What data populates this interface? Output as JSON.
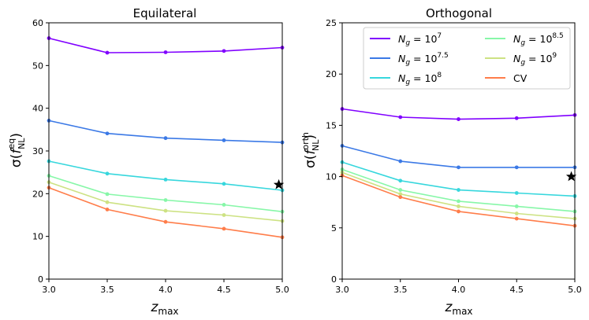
{
  "chart_data": [
    {
      "type": "line",
      "title": "Equilateral",
      "xlabel": "z",
      "xlabel_sub": "max",
      "ylabel_prefix": "σ(",
      "ylabel_main": "f",
      "ylabel_sup": "eq",
      "ylabel_sub": "NL",
      "ylabel_suffix": ")",
      "xlim": [
        3.0,
        5.0
      ],
      "ylim": [
        0,
        60
      ],
      "xticks": [
        3.0,
        3.5,
        4.0,
        4.5,
        5.0
      ],
      "xtick_labels": [
        "3.0",
        "3.5",
        "4.0",
        "4.5",
        "5.0"
      ],
      "yticks": [
        0,
        10,
        20,
        30,
        40,
        50,
        60
      ],
      "ytick_labels": [
        "0",
        "10",
        "20",
        "30",
        "40",
        "50",
        "60"
      ],
      "x": [
        3.0,
        3.5,
        4.0,
        4.5,
        5.0
      ],
      "series": [
        {
          "name": "N_g = 10^7",
          "color": "#8000ff",
          "values": [
            56.4,
            53.0,
            53.1,
            53.4,
            54.2
          ]
        },
        {
          "name": "N_g = 10^7.5",
          "color": "#3b79e6",
          "values": [
            37.1,
            34.1,
            33.0,
            32.5,
            32.0
          ]
        },
        {
          "name": "N_g = 10^8",
          "color": "#37d7dd",
          "values": [
            27.6,
            24.7,
            23.3,
            22.3,
            20.8
          ]
        },
        {
          "name": "N_g = 10^8.5",
          "color": "#87f7a8",
          "values": [
            24.2,
            19.9,
            18.5,
            17.4,
            15.8
          ]
        },
        {
          "name": "N_g = 10^9",
          "color": "#cde283",
          "values": [
            22.7,
            18.0,
            16.0,
            15.0,
            13.6
          ]
        },
        {
          "name": "CV",
          "color": "#ff7d4a",
          "values": [
            21.4,
            16.3,
            13.4,
            11.8,
            9.8
          ]
        }
      ],
      "marker": {
        "symbol": "star",
        "x": 4.97,
        "y": 22.1
      }
    },
    {
      "type": "line",
      "title": "Orthogonal",
      "xlabel": "z",
      "xlabel_sub": "max",
      "ylabel_prefix": "σ(",
      "ylabel_main": "f",
      "ylabel_sup": "orth",
      "ylabel_sub": "NL",
      "ylabel_suffix": ")",
      "xlim": [
        3.0,
        5.0
      ],
      "ylim": [
        0,
        25
      ],
      "xticks": [
        3.0,
        3.5,
        4.0,
        4.5,
        5.0
      ],
      "xtick_labels": [
        "3.0",
        "3.5",
        "4.0",
        "4.5",
        "5.0"
      ],
      "yticks": [
        0,
        5,
        10,
        15,
        20,
        25
      ],
      "ytick_labels": [
        "0",
        "5",
        "10",
        "15",
        "20",
        "25"
      ],
      "x": [
        3.0,
        3.5,
        4.0,
        4.5,
        5.0
      ],
      "series": [
        {
          "name": "N_g = 10^7",
          "color": "#8000ff",
          "values": [
            16.6,
            15.8,
            15.6,
            15.7,
            16.0
          ]
        },
        {
          "name": "N_g = 10^7.5",
          "color": "#3b79e6",
          "values": [
            13.0,
            11.5,
            10.9,
            10.9,
            10.9
          ]
        },
        {
          "name": "N_g = 10^8",
          "color": "#37d7dd",
          "values": [
            11.4,
            9.6,
            8.7,
            8.4,
            8.1
          ]
        },
        {
          "name": "N_g = 10^8.5",
          "color": "#87f7a8",
          "values": [
            10.7,
            8.7,
            7.6,
            7.1,
            6.6
          ]
        },
        {
          "name": "N_g = 10^9",
          "color": "#cde283",
          "values": [
            10.4,
            8.3,
            7.1,
            6.4,
            5.9
          ]
        },
        {
          "name": "CV",
          "color": "#ff7d4a",
          "values": [
            10.1,
            8.0,
            6.6,
            5.9,
            5.2
          ]
        }
      ],
      "marker": {
        "symbol": "star",
        "x": 4.97,
        "y": 10.0
      },
      "legend": {
        "placement": "top-right",
        "columns": 2,
        "entries": [
          {
            "label": "N",
            "sub": "g",
            "eq": " = 10",
            "exp": "7",
            "color": "#8000ff"
          },
          {
            "label": "N",
            "sub": "g",
            "eq": " = 10",
            "exp": "7.5",
            "color": "#3b79e6"
          },
          {
            "label": "N",
            "sub": "g",
            "eq": " = 10",
            "exp": "8",
            "color": "#37d7dd"
          },
          {
            "label": "N",
            "sub": "g",
            "eq": " = 10",
            "exp": "8.5",
            "color": "#87f7a8"
          },
          {
            "label": "N",
            "sub": "g",
            "eq": " = 10",
            "exp": "9",
            "color": "#cde283"
          },
          {
            "label": "CV",
            "sub": "",
            "eq": "",
            "exp": "",
            "color": "#ff7d4a"
          }
        ]
      }
    }
  ]
}
